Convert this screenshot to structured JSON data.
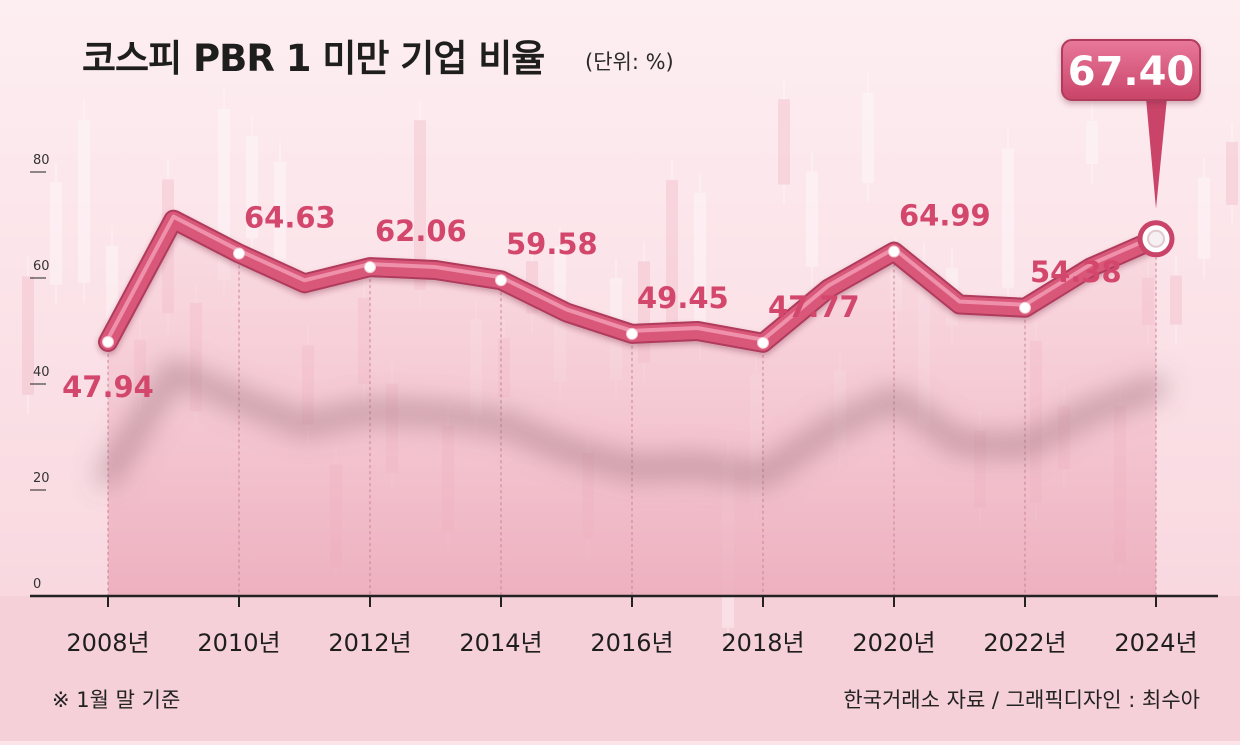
{
  "header": {
    "title": "코스피 PBR 1 미만 기업 비율",
    "unit": "(단위: %)"
  },
  "footer": {
    "note": "※ 1월 말 기준",
    "source": "한국거래소 자료 / 그래픽디자인 : 최수아"
  },
  "colors": {
    "line": "#d9587a",
    "label": "#d4476c",
    "background": "#fde4e9",
    "floor": "#f5c4cf"
  },
  "chart_data": {
    "type": "line",
    "x": [
      2008,
      2009,
      2010,
      2011,
      2012,
      2013,
      2014,
      2015,
      2016,
      2017,
      2018,
      2019,
      2020,
      2021,
      2022,
      2023,
      2024
    ],
    "values": [
      47.94,
      71,
      64.63,
      59,
      62.06,
      61.5,
      59.58,
      53.5,
      49.45,
      50.0,
      47.77,
      58.0,
      64.99,
      55.0,
      54.38,
      62.0,
      67.4
    ],
    "ylim": [
      0,
      80
    ],
    "yticks": [
      "0",
      "20",
      "40",
      "60",
      "80"
    ],
    "xticks": [
      "2008년",
      "2010년",
      "2012년",
      "2014년",
      "2016년",
      "2018년",
      "2020년",
      "2022년",
      "2024년"
    ],
    "xtick_years": [
      2008,
      2010,
      2012,
      2014,
      2016,
      2018,
      2020,
      2022,
      2024
    ],
    "labels": [
      {
        "x": 2008,
        "text": "47.94",
        "pos": "below"
      },
      {
        "x": 2010,
        "text": "64.63",
        "pos": "above"
      },
      {
        "x": 2012,
        "text": "62.06",
        "pos": "above"
      },
      {
        "x": 2014,
        "text": "59.58",
        "pos": "above"
      },
      {
        "x": 2016,
        "text": "49.45",
        "pos": "above"
      },
      {
        "x": 2018,
        "text": "47.77",
        "pos": "above"
      },
      {
        "x": 2020,
        "text": "64.99",
        "pos": "above"
      },
      {
        "x": 2022,
        "text": "54.38",
        "pos": "above"
      }
    ],
    "callout": {
      "x": 2024,
      "text": "67.40"
    },
    "grid": false,
    "legend": "none"
  }
}
